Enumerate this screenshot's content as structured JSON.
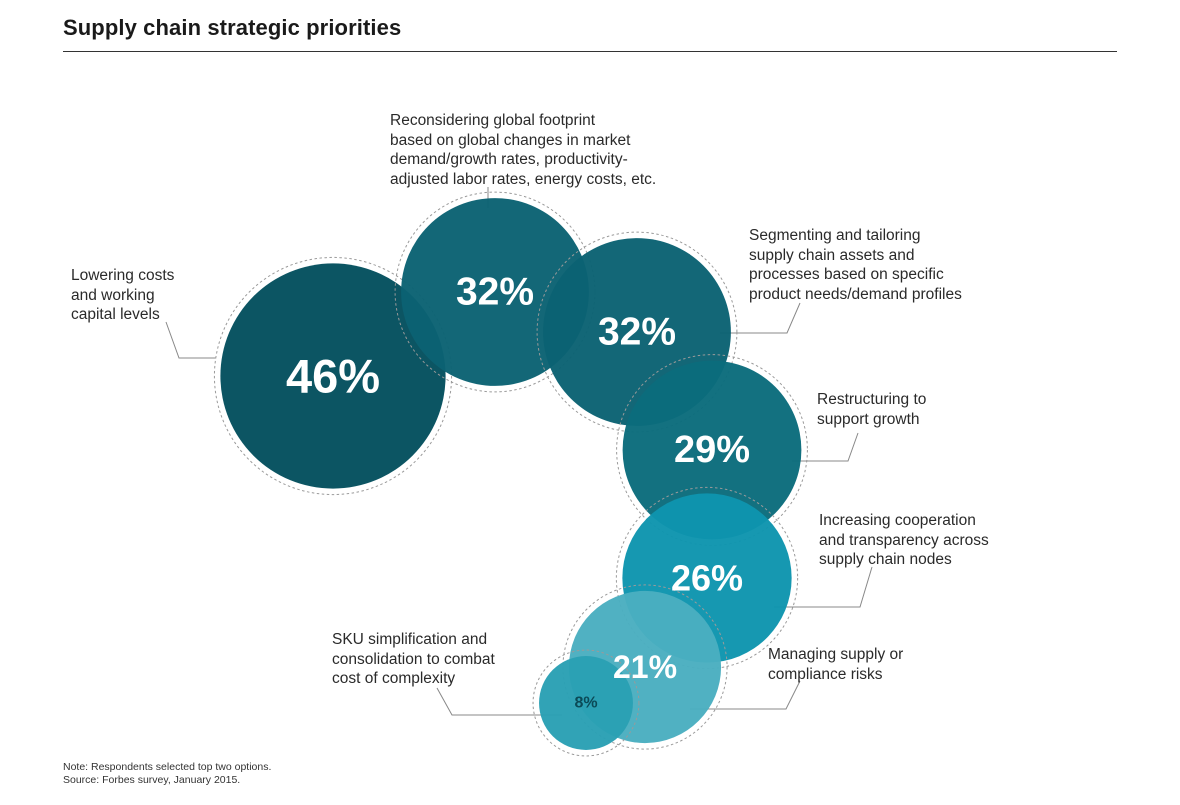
{
  "title": "Supply chain strategic priorities",
  "chart_data": {
    "type": "bubble",
    "unit": "%",
    "items": [
      {
        "label": "Lowering costs\nand working\ncapital levels",
        "value": 46,
        "display": "46%",
        "color": "#04505e"
      },
      {
        "label": "Reconsidering global footprint\nbased on global changes in market\ndemand/growth rates, productivity-\nadjusted labor rates, energy costs, etc.",
        "value": 32,
        "display": "32%",
        "color": "#0b6273"
      },
      {
        "label": "Segmenting and tailoring\nsupply chain assets and\nprocesses based on specific\nproduct needs/demand profiles",
        "value": 32,
        "display": "32%",
        "color": "#0b6273"
      },
      {
        "label": "Restructuring to\nsupport growth",
        "value": 29,
        "display": "29%",
        "color": "#0b6c7c"
      },
      {
        "label": "Increasing cooperation\nand transparency across\nsupply chain nodes",
        "value": 26,
        "display": "26%",
        "color": "#0e95ae"
      },
      {
        "label": "Managing supply or\ncompliance risks",
        "value": 21,
        "display": "21%",
        "color": "#4aaec0"
      },
      {
        "label": "SKU simplification and\nconsolidation to combat\ncost of complexity",
        "value": 8,
        "display": "8%",
        "color": "#2aa0b4"
      }
    ]
  },
  "notes": {
    "line1": "Note: Respondents selected top two options.",
    "line2": "Source: Forbes survey, January 2015."
  }
}
